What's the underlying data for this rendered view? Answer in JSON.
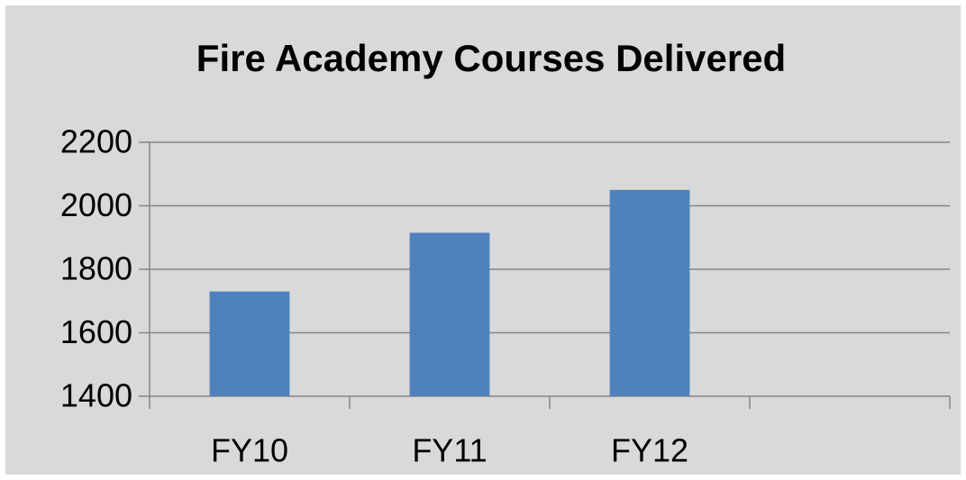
{
  "chart_data": {
    "type": "bar",
    "title": "Fire Academy Courses Delivered",
    "categories": [
      "FY10",
      "FY11",
      "FY12",
      null
    ],
    "values": [
      1730,
      1915,
      2050,
      null
    ],
    "color": "#4f81bd",
    "ylim": [
      1400,
      2200
    ],
    "yticks": [
      1400,
      1600,
      1800,
      2000,
      2200
    ],
    "grid": true
  }
}
